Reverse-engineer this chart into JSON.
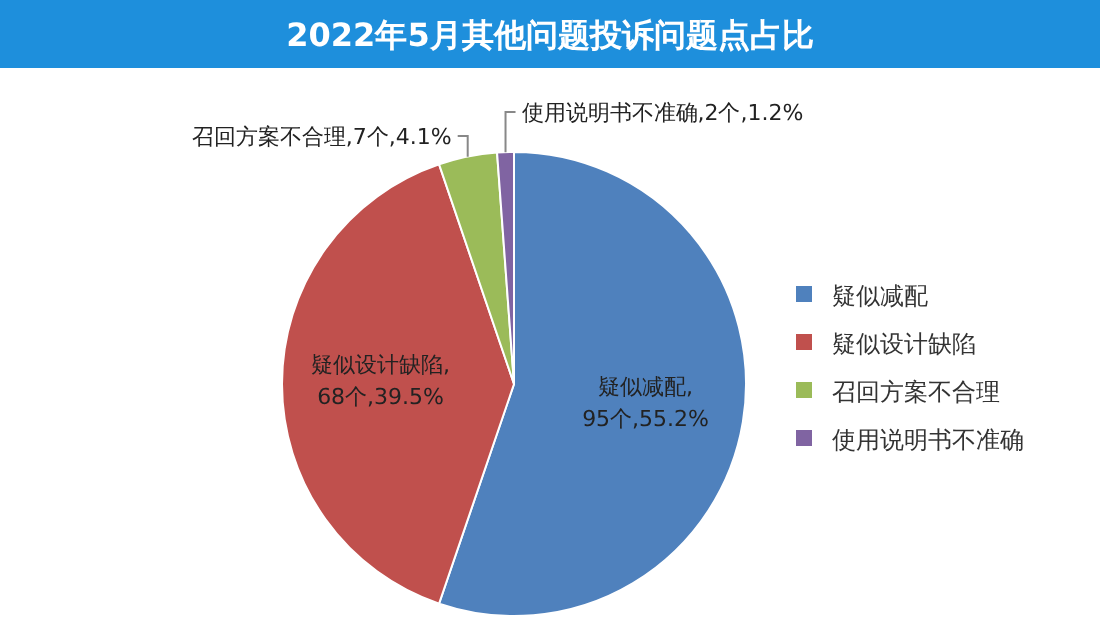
{
  "chart_data": {
    "type": "pie",
    "title": "2022年5月其他问题投诉问题点占比",
    "categories": [
      "疑似减配",
      "疑似设计缺陷",
      "召回方案不合理",
      "使用说明书不准确"
    ],
    "values": [
      95,
      68,
      7,
      2
    ],
    "value_labels": [
      "疑似减配,95个,55.2%",
      "疑似设计缺陷,68个,39.5%",
      "召回方案不合理,7个,4.1%",
      "使用说明书不准确,2个,1.2%"
    ],
    "colors": [
      "#4f81bd",
      "#c0504d",
      "#9bbb59",
      "#8064a2"
    ],
    "legend": "right"
  }
}
